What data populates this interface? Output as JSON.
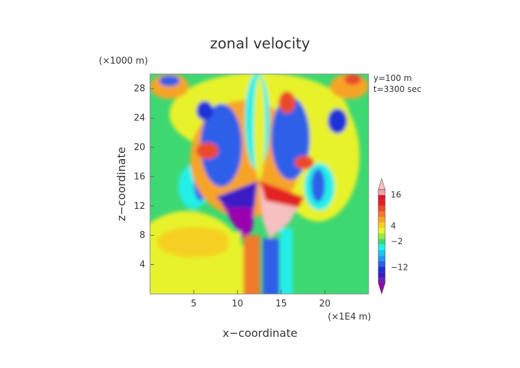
{
  "chart_data": {
    "type": "heatmap",
    "title": "zonal velocity",
    "xlabel": "x−coordinate",
    "ylabel": "z−coordinate",
    "x_unit": "(×1E4 m)",
    "y_unit": "(×1000 m)",
    "annotations": [
      "y=100 m",
      "t=3300 sec"
    ],
    "xlim": [
      0,
      25
    ],
    "ylim": [
      0,
      30
    ],
    "x_ticks": [
      5,
      10,
      15,
      20
    ],
    "y_ticks": [
      4,
      8,
      12,
      16,
      20,
      24,
      28
    ],
    "colorbar": {
      "tick_labels": [
        "16",
        "4",
        "−2",
        "−12"
      ],
      "tick_values": [
        16,
        4,
        -2,
        -12
      ],
      "levels": [
        -18,
        -16,
        -14,
        -12,
        -10,
        -8,
        -6,
        -4,
        -2,
        0,
        2,
        4,
        6,
        8,
        10,
        12,
        14,
        16,
        18
      ],
      "colors": [
        "#9a00b0",
        "#6b1fb8",
        "#3a1cc4",
        "#1e30d8",
        "#2f5ee8",
        "#1c9af0",
        "#19c6ef",
        "#23f0e8",
        "#3ed873",
        "#97e64a",
        "#e8f22c",
        "#f5d020",
        "#f7a428",
        "#f07a2a",
        "#ec4a2a",
        "#e32020",
        "#d81830",
        "#f2a0a0",
        "#f7c0c0"
      ]
    },
    "background_color": "#3ed873"
  }
}
